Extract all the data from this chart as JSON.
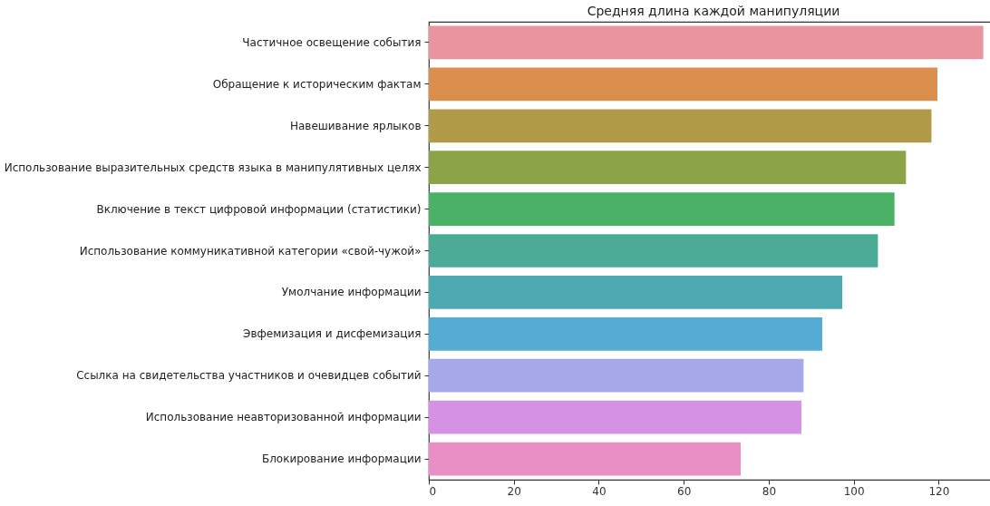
{
  "chart_data": {
    "type": "bar",
    "orientation": "horizontal",
    "title": "Средняя длина каждой манипуляции",
    "categories": [
      "Частичное освещение события",
      "Обращение к историческим фактам",
      "Навешивание ярлыков",
      "Использование выразительных средств языка в манипулятивных целях",
      "Включение в текст цифровой информации (статистики)",
      "Использование коммуникативной категории «свой-чужой»",
      "Умолчание информации",
      "Эвфемизация и дисфемизация",
      "Ссылка на свидетельства участников и очевидцев событий",
      "Использование неавторизованной информации",
      "Блокирование информации"
    ],
    "values": [
      130.5,
      119.7,
      118.3,
      112.3,
      109.6,
      105.7,
      97.3,
      92.6,
      88.2,
      87.7,
      73.4
    ],
    "colors": [
      "#e9949f",
      "#da8f4f",
      "#b29b48",
      "#8ca447",
      "#4bb166",
      "#4bab97",
      "#4daab0",
      "#54acd2",
      "#a7a8e9",
      "#d592e4",
      "#e88fc6"
    ],
    "xlim": [
      0,
      134
    ],
    "xticks": [
      0,
      20,
      40,
      60,
      80,
      100,
      120
    ],
    "grid": false
  }
}
